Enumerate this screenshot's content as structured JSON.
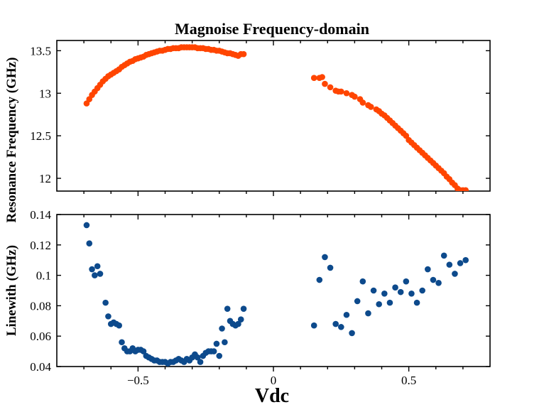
{
  "chart_data": {
    "type": "scatter",
    "title": "Magnoise Frequency-domain",
    "xlabel": "Vdc",
    "xlim": [
      -0.8,
      0.8
    ],
    "x_ticks": [
      -0.5,
      0,
      0.5
    ],
    "x_tick_labels": [
      "−0.5",
      "0",
      "0.5"
    ],
    "panels": [
      {
        "ylabel": "Resonance Frequency (GHz)",
        "ylim": [
          11.85,
          13.62
        ],
        "y_ticks": [
          12,
          12.5,
          13,
          13.5
        ],
        "y_tick_labels": [
          "12",
          "12.5",
          "13",
          "13.5"
        ],
        "color": "#ff4500",
        "series": [
          {
            "x": [
              -0.69,
              -0.68,
              -0.67,
              -0.66,
              -0.65,
              -0.64,
              -0.63,
              -0.62,
              -0.61,
              -0.6,
              -0.59,
              -0.58,
              -0.57,
              -0.56,
              -0.55,
              -0.54,
              -0.53,
              -0.52,
              -0.51,
              -0.5,
              -0.49,
              -0.48,
              -0.47,
              -0.46,
              -0.45,
              -0.44,
              -0.43,
              -0.42,
              -0.41,
              -0.4,
              -0.39,
              -0.38,
              -0.37,
              -0.36,
              -0.35,
              -0.34,
              -0.33,
              -0.32,
              -0.31,
              -0.3,
              -0.29,
              -0.28,
              -0.27,
              -0.26,
              -0.25,
              -0.24,
              -0.23,
              -0.22,
              -0.21,
              -0.2,
              -0.19,
              -0.18,
              -0.17,
              -0.16,
              -0.15,
              -0.14,
              -0.13,
              -0.12,
              -0.11,
              0.15,
              0.17,
              0.18,
              0.19,
              0.21,
              0.23,
              0.24,
              0.25,
              0.27,
              0.29,
              0.3,
              0.32,
              0.33,
              0.35,
              0.36,
              0.38,
              0.39,
              0.4,
              0.41,
              0.42,
              0.43,
              0.44,
              0.45,
              0.46,
              0.47,
              0.48,
              0.49,
              0.5,
              0.51,
              0.52,
              0.53,
              0.54,
              0.55,
              0.56,
              0.57,
              0.58,
              0.59,
              0.6,
              0.61,
              0.62,
              0.63,
              0.64,
              0.65,
              0.66,
              0.67,
              0.68,
              0.69,
              0.7,
              0.71
            ],
            "y": [
              12.88,
              12.93,
              12.98,
              13.02,
              13.06,
              13.1,
              13.14,
              13.17,
              13.2,
              13.22,
              13.24,
              13.26,
              13.28,
              13.31,
              13.33,
              13.35,
              13.37,
              13.38,
              13.4,
              13.41,
              13.42,
              13.43,
              13.45,
              13.46,
              13.47,
              13.48,
              13.49,
              13.5,
              13.5,
              13.51,
              13.52,
              13.52,
              13.53,
              13.53,
              13.53,
              13.54,
              13.54,
              13.54,
              13.54,
              13.54,
              13.54,
              13.53,
              13.53,
              13.53,
              13.52,
              13.52,
              13.51,
              13.51,
              13.5,
              13.5,
              13.49,
              13.48,
              13.47,
              13.47,
              13.46,
              13.45,
              13.44,
              13.46,
              13.46,
              13.18,
              13.18,
              13.19,
              13.11,
              13.07,
              13.03,
              13.02,
              13.02,
              13.0,
              12.98,
              12.96,
              12.93,
              12.89,
              12.86,
              12.84,
              12.81,
              12.79,
              12.76,
              12.74,
              12.71,
              12.68,
              12.65,
              12.62,
              12.59,
              12.56,
              12.53,
              12.5,
              12.45,
              12.42,
              12.39,
              12.36,
              12.33,
              12.3,
              12.27,
              12.24,
              12.21,
              12.18,
              12.15,
              12.12,
              12.09,
              12.06,
              12.02,
              11.99,
              11.95,
              11.92,
              11.88,
              11.86,
              11.86,
              11.86
            ]
          }
        ]
      },
      {
        "ylabel": "Linewith (GHz)",
        "ylim": [
          0.04,
          0.14
        ],
        "y_ticks": [
          0.04,
          0.06,
          0.08,
          0.1,
          0.12,
          0.14
        ],
        "y_tick_labels": [
          "0.04",
          "0.06",
          "0.08",
          "0.1",
          "0.12",
          "0.14"
        ],
        "color": "#0d4a8c",
        "series": [
          {
            "x": [
              -0.69,
              -0.68,
              -0.67,
              -0.66,
              -0.65,
              -0.64,
              -0.62,
              -0.61,
              -0.6,
              -0.59,
              -0.58,
              -0.57,
              -0.56,
              -0.55,
              -0.54,
              -0.53,
              -0.52,
              -0.51,
              -0.5,
              -0.49,
              -0.48,
              -0.47,
              -0.46,
              -0.45,
              -0.44,
              -0.43,
              -0.42,
              -0.41,
              -0.4,
              -0.39,
              -0.38,
              -0.37,
              -0.36,
              -0.35,
              -0.34,
              -0.33,
              -0.32,
              -0.31,
              -0.3,
              -0.29,
              -0.28,
              -0.27,
              -0.26,
              -0.25,
              -0.24,
              -0.23,
              -0.22,
              -0.21,
              -0.2,
              -0.19,
              -0.18,
              -0.17,
              -0.16,
              -0.15,
              -0.14,
              -0.13,
              -0.12,
              -0.11,
              0.15,
              0.17,
              0.19,
              0.21,
              0.23,
              0.25,
              0.27,
              0.29,
              0.31,
              0.33,
              0.35,
              0.37,
              0.39,
              0.41,
              0.43,
              0.45,
              0.47,
              0.49,
              0.51,
              0.53,
              0.55,
              0.57,
              0.59,
              0.61,
              0.63,
              0.65,
              0.67,
              0.69,
              0.71
            ],
            "y": [
              0.133,
              0.121,
              0.104,
              0.1,
              0.106,
              0.101,
              0.082,
              0.073,
              0.068,
              0.069,
              0.068,
              0.067,
              0.056,
              0.052,
              0.05,
              0.05,
              0.052,
              0.05,
              0.051,
              0.051,
              0.05,
              0.047,
              0.046,
              0.045,
              0.044,
              0.044,
              0.043,
              0.043,
              0.043,
              0.042,
              0.043,
              0.043,
              0.044,
              0.045,
              0.044,
              0.043,
              0.045,
              0.044,
              0.046,
              0.048,
              0.046,
              0.043,
              0.047,
              0.049,
              0.05,
              0.05,
              0.05,
              0.055,
              0.047,
              0.065,
              0.056,
              0.078,
              0.07,
              0.068,
              0.067,
              0.068,
              0.071,
              0.078,
              0.067,
              0.097,
              0.112,
              0.105,
              0.068,
              0.066,
              0.074,
              0.062,
              0.083,
              0.096,
              0.075,
              0.09,
              0.081,
              0.088,
              0.082,
              0.092,
              0.089,
              0.096,
              0.088,
              0.082,
              0.09,
              0.104,
              0.097,
              0.095,
              0.113,
              0.107,
              0.101,
              0.108,
              0.11
            ]
          }
        ]
      }
    ]
  }
}
